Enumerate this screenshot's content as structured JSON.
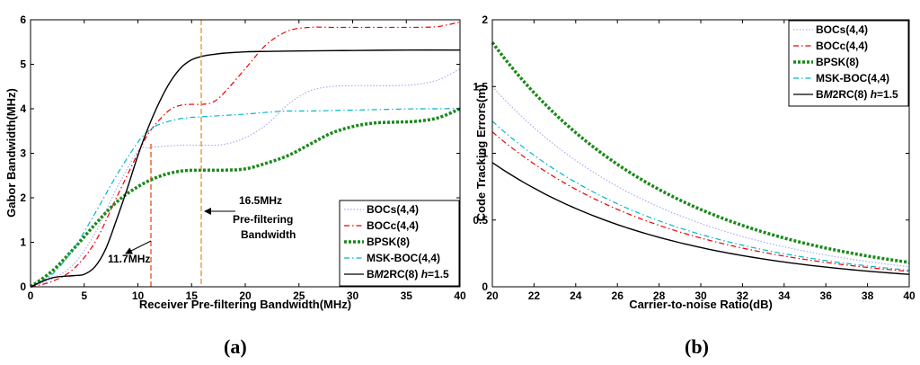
{
  "chart_data": [
    {
      "type": "line",
      "panel_label": "a",
      "xlabel": "Receiver Pre-filtering Bandwidth(MHz)",
      "ylabel": "Gabor Bandwidth(MHz)",
      "xlim": [
        0,
        40
      ],
      "ylim": [
        0,
        6
      ],
      "xticks": [
        0,
        5,
        10,
        15,
        20,
        25,
        30,
        35,
        40
      ],
      "yticks": [
        0,
        1,
        2,
        3,
        4,
        5,
        6
      ],
      "legend_position": "bottom-right",
      "series": [
        {
          "name": "BOCs(4,4)",
          "color": "#aaaaf5",
          "dash": "dot",
          "x": [
            0,
            2,
            4,
            6,
            8,
            10,
            11,
            12,
            14,
            16,
            18,
            20,
            22,
            24,
            26,
            28,
            30,
            32,
            34,
            36,
            38,
            40
          ],
          "y": [
            0,
            0.18,
            0.5,
            1.2,
            2.2,
            3.05,
            3.12,
            3.15,
            3.18,
            3.18,
            3.2,
            3.35,
            3.65,
            4.1,
            4.4,
            4.5,
            4.52,
            4.52,
            4.52,
            4.55,
            4.65,
            4.9
          ]
        },
        {
          "name": "BOCc(4,4)",
          "color": "#ee0000",
          "dash": "dashdot",
          "x": [
            0,
            2,
            4,
            6,
            8,
            10,
            11,
            12,
            13,
            14,
            15,
            16,
            17,
            18,
            20,
            22,
            24,
            26,
            28,
            30,
            32,
            34,
            36,
            38,
            40
          ],
          "y": [
            0,
            0.12,
            0.4,
            1.0,
            2.0,
            3.0,
            3.45,
            3.75,
            3.98,
            4.08,
            4.1,
            4.1,
            4.15,
            4.35,
            4.9,
            5.45,
            5.75,
            5.83,
            5.83,
            5.83,
            5.83,
            5.83,
            5.83,
            5.85,
            5.95
          ]
        },
        {
          "name": "BPSK(8)",
          "color": "#1a8a1a",
          "dash": "thickdot",
          "x": [
            0,
            2,
            4,
            6,
            8,
            10,
            12,
            14,
            16,
            18,
            20,
            22,
            24,
            26,
            28,
            30,
            32,
            34,
            36,
            38,
            40
          ],
          "y": [
            0,
            0.35,
            0.85,
            1.4,
            1.9,
            2.25,
            2.48,
            2.6,
            2.62,
            2.62,
            2.65,
            2.78,
            2.95,
            3.2,
            3.45,
            3.6,
            3.68,
            3.7,
            3.72,
            3.8,
            4.0
          ]
        },
        {
          "name": "MSK-BOC(4,4)",
          "color": "#00b8c8",
          "dash": "dashdot",
          "x": [
            0,
            2,
            4,
            6,
            8,
            10,
            11,
            12,
            14,
            16,
            18,
            20,
            22,
            24,
            26,
            28,
            30,
            32,
            34,
            36,
            38,
            40
          ],
          "y": [
            0,
            0.28,
            0.85,
            1.65,
            2.5,
            3.25,
            3.5,
            3.65,
            3.78,
            3.82,
            3.85,
            3.88,
            3.92,
            3.95,
            3.95,
            3.96,
            3.97,
            3.98,
            3.99,
            4.0,
            4.0,
            4.01
          ]
        },
        {
          "name": "BM2RC(8) h=1.5",
          "color": "#000000",
          "dash": "solid",
          "x": [
            0,
            2,
            4,
            5,
            6,
            7,
            8,
            9,
            10,
            11,
            12,
            13,
            14,
            15,
            16,
            17,
            18,
            20,
            22,
            25,
            30,
            35,
            40
          ],
          "y": [
            0,
            0.2,
            0.25,
            0.28,
            0.45,
            0.85,
            1.5,
            2.2,
            2.95,
            3.6,
            4.15,
            4.6,
            4.92,
            5.1,
            5.18,
            5.22,
            5.25,
            5.28,
            5.29,
            5.3,
            5.31,
            5.32,
            5.32
          ]
        }
      ],
      "annotations": [
        {
          "text": "11.7MHz",
          "x": 11.7
        },
        {
          "text": "16.5MHz",
          "x": 16.5
        },
        {
          "text": "Pre-filtering",
          "x": 16.5
        },
        {
          "text": "Bandwidth",
          "x": 16.5
        }
      ]
    },
    {
      "type": "line",
      "panel_label": "b",
      "xlabel": "Carrier-to-noise Ratio(dB)",
      "ylabel": "Code Tracking Errors(m)",
      "xlim": [
        20,
        40
      ],
      "ylim": [
        0,
        2
      ],
      "xticks": [
        20,
        22,
        24,
        26,
        28,
        30,
        32,
        34,
        36,
        38,
        40
      ],
      "yticks": [
        0,
        0.5,
        1,
        1.5,
        2
      ],
      "legend_position": "top-right",
      "series": [
        {
          "name": "BOCs(4,4)",
          "color": "#aaaaf5",
          "dash": "dot",
          "start": 1.5,
          "end": 0.15
        },
        {
          "name": "BOCc(4,4)",
          "color": "#ee0000",
          "dash": "dashdot",
          "start": 1.16,
          "end": 0.115
        },
        {
          "name": "BPSK(8)",
          "color": "#1a8a1a",
          "dash": "thickdot",
          "start": 1.83,
          "end": 0.183
        },
        {
          "name": "MSK-BOC(4,4)",
          "color": "#00b8c8",
          "dash": "dashdot",
          "start": 1.24,
          "end": 0.124
        },
        {
          "name": "BM2RC(8) h=1.5",
          "color": "#000000",
          "dash": "solid",
          "start": 0.93,
          "end": 0.093
        }
      ]
    }
  ],
  "legend_labels": {
    "bocs": "BOCs(4,4)",
    "bocc": "BOCc(4,4)",
    "bpsk": "BPSK(8)",
    "mskboc": "MSK-BOC(4,4)",
    "bm2rc_prefix": "B",
    "bm2rc_m": "M",
    "bm2rc_mid": "2RC(8) ",
    "bm2rc_h": "h",
    "bm2rc_suffix": "=1.5"
  },
  "captions": {
    "a_open": "(",
    "a_letter": "a",
    "a_close": ")",
    "b_open": "(",
    "b_letter": "b",
    "b_close": ")"
  }
}
